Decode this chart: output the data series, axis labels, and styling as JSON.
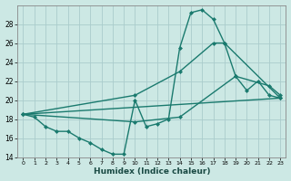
{
  "xlabel": "Humidex (Indice chaleur)",
  "bg_color": "#cce8e4",
  "grid_color": "#aacccc",
  "line_color": "#1a7a6e",
  "xlim": [
    -0.5,
    23.5
  ],
  "ylim": [
    14,
    30
  ],
  "xticks": [
    0,
    1,
    2,
    3,
    4,
    5,
    6,
    7,
    8,
    9,
    10,
    11,
    12,
    13,
    14,
    15,
    16,
    17,
    18,
    19,
    20,
    21,
    22,
    23
  ],
  "yticks": [
    14,
    16,
    18,
    20,
    22,
    24,
    26,
    28
  ],
  "series": [
    {
      "x": [
        0,
        1,
        2,
        3,
        4,
        5,
        6,
        7,
        8,
        9,
        10,
        11,
        12,
        13,
        14,
        15,
        16,
        17,
        18,
        19,
        20,
        21,
        22,
        23
      ],
      "y": [
        18.5,
        18.2,
        17.2,
        16.7,
        16.7,
        16.0,
        15.5,
        14.8,
        14.3,
        14.3,
        20.0,
        17.2,
        17.5,
        18.0,
        25.5,
        29.2,
        29.5,
        28.5,
        26.0,
        22.5,
        21.0,
        22.0,
        20.5,
        20.2
      ],
      "marker": "D",
      "markersize": 2.0,
      "linewidth": 1.0
    },
    {
      "x": [
        0,
        23
      ],
      "y": [
        18.5,
        20.2
      ],
      "marker": null,
      "linewidth": 1.0
    },
    {
      "x": [
        0,
        10,
        14,
        19,
        22,
        23
      ],
      "y": [
        18.5,
        17.7,
        18.2,
        22.5,
        21.5,
        20.5
      ],
      "marker": "D",
      "markersize": 2.0,
      "linewidth": 1.0
    },
    {
      "x": [
        0,
        10,
        14,
        17,
        18,
        23
      ],
      "y": [
        18.5,
        20.5,
        23.0,
        26.0,
        26.0,
        20.2
      ],
      "marker": "D",
      "markersize": 2.0,
      "linewidth": 1.0
    }
  ]
}
